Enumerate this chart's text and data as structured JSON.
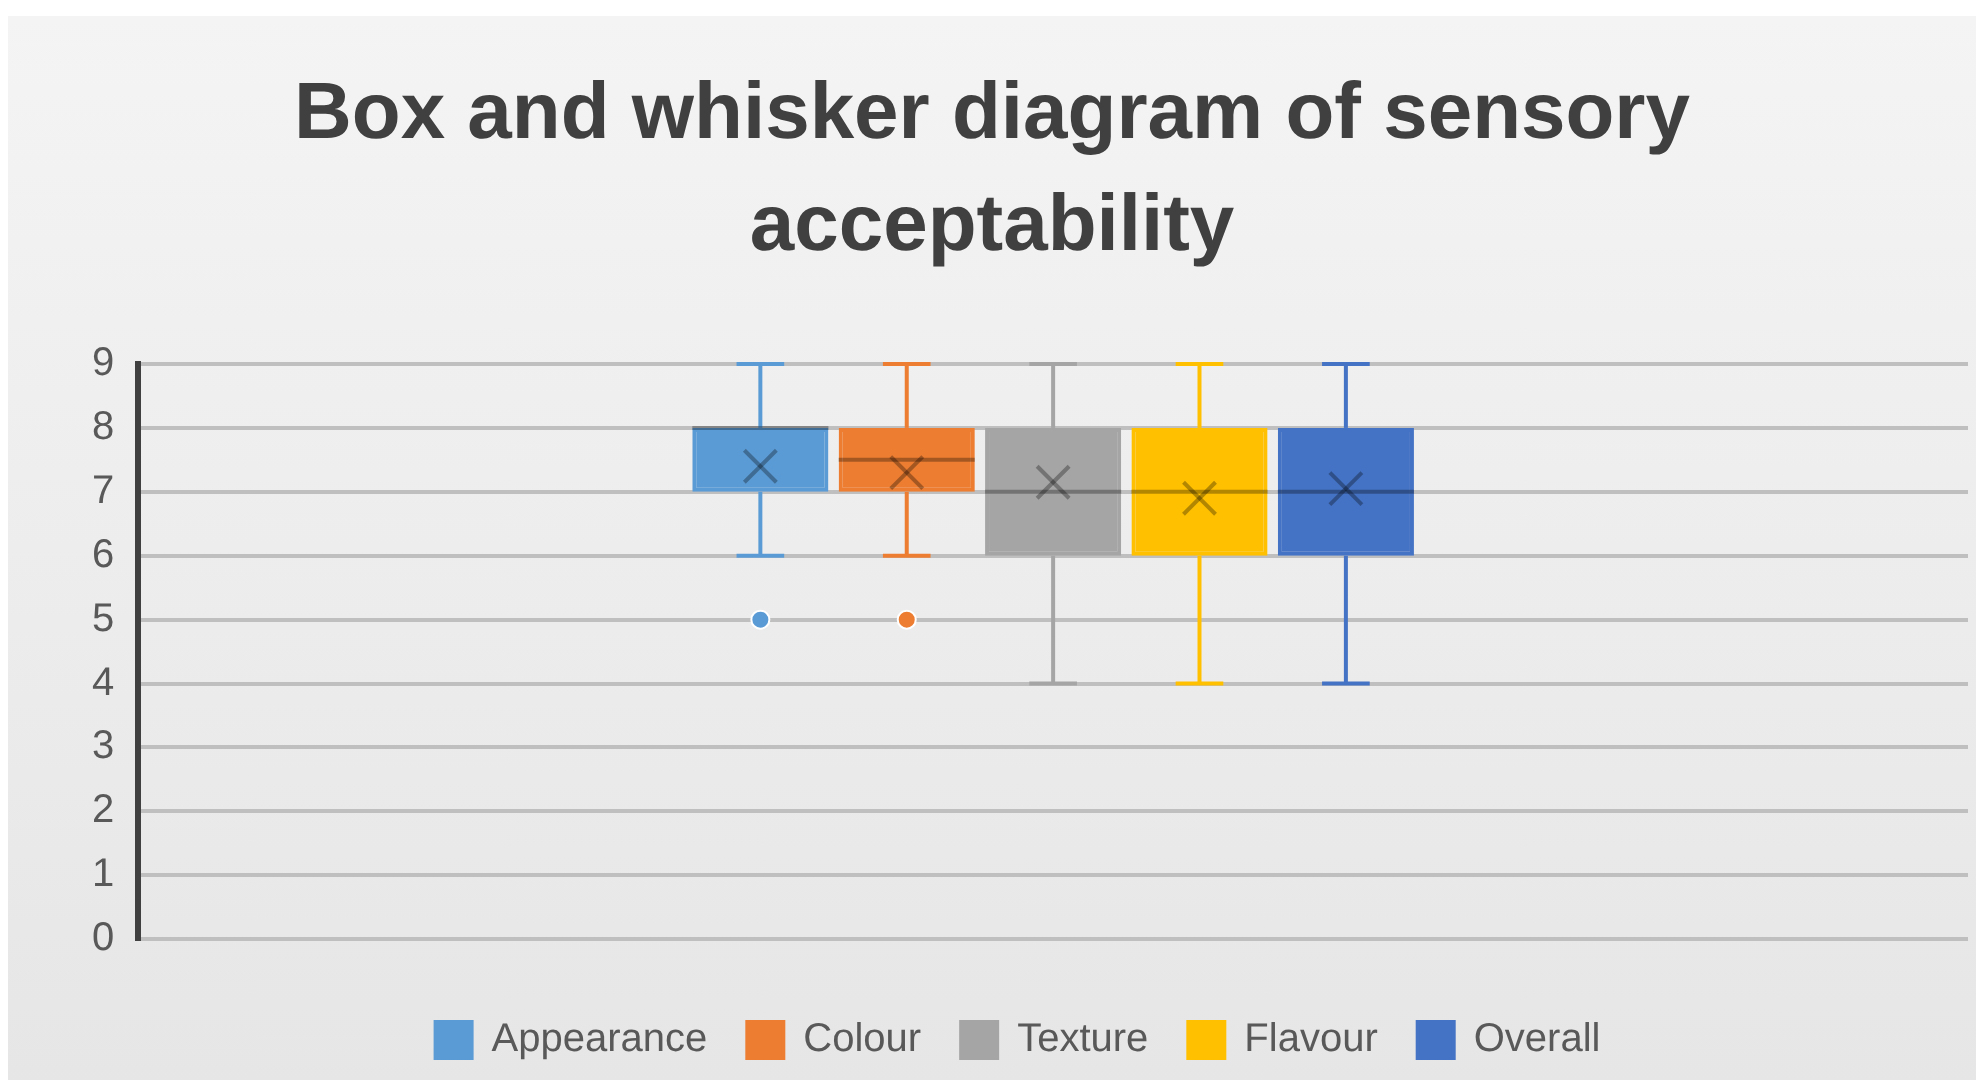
{
  "chart_data": {
    "type": "box",
    "title": "Box and whisker diagram  of sensory acceptability",
    "categories": [
      null
    ],
    "series": [
      {
        "name": "Appearance",
        "color": "#5b9bd5",
        "boxes": [
          {
            "low": 6,
            "q1": 7,
            "median": 8,
            "q3": 8,
            "high": 9,
            "mean": 7.4,
            "outliers": [
              5
            ]
          }
        ]
      },
      {
        "name": "Colour",
        "color": "#ed7d31",
        "boxes": [
          {
            "low": 6,
            "q1": 7,
            "median": 7.5,
            "q3": 8,
            "high": 9,
            "mean": 7.3,
            "outliers": [
              5
            ]
          }
        ]
      },
      {
        "name": "Texture",
        "color": "#a5a5a5",
        "boxes": [
          {
            "low": 4,
            "q1": 6,
            "median": 7,
            "q3": 8,
            "high": 9,
            "mean": 7.15
          }
        ]
      },
      {
        "name": "Flavour",
        "color": "#ffc000",
        "boxes": [
          {
            "low": 4,
            "q1": 6,
            "median": 7,
            "q3": 8,
            "high": 9,
            "mean": 6.9
          }
        ]
      },
      {
        "name": "Overall",
        "color": "#4472c4",
        "boxes": [
          {
            "low": 4,
            "q1": 6,
            "median": 7,
            "q3": 8,
            "high": 9,
            "mean": 7.05
          }
        ]
      }
    ],
    "ylim": [
      0,
      9
    ],
    "yticks": [
      0,
      1,
      2,
      3,
      4,
      5,
      6,
      7,
      8,
      9
    ],
    "grid": "y",
    "legend": "bottom"
  }
}
